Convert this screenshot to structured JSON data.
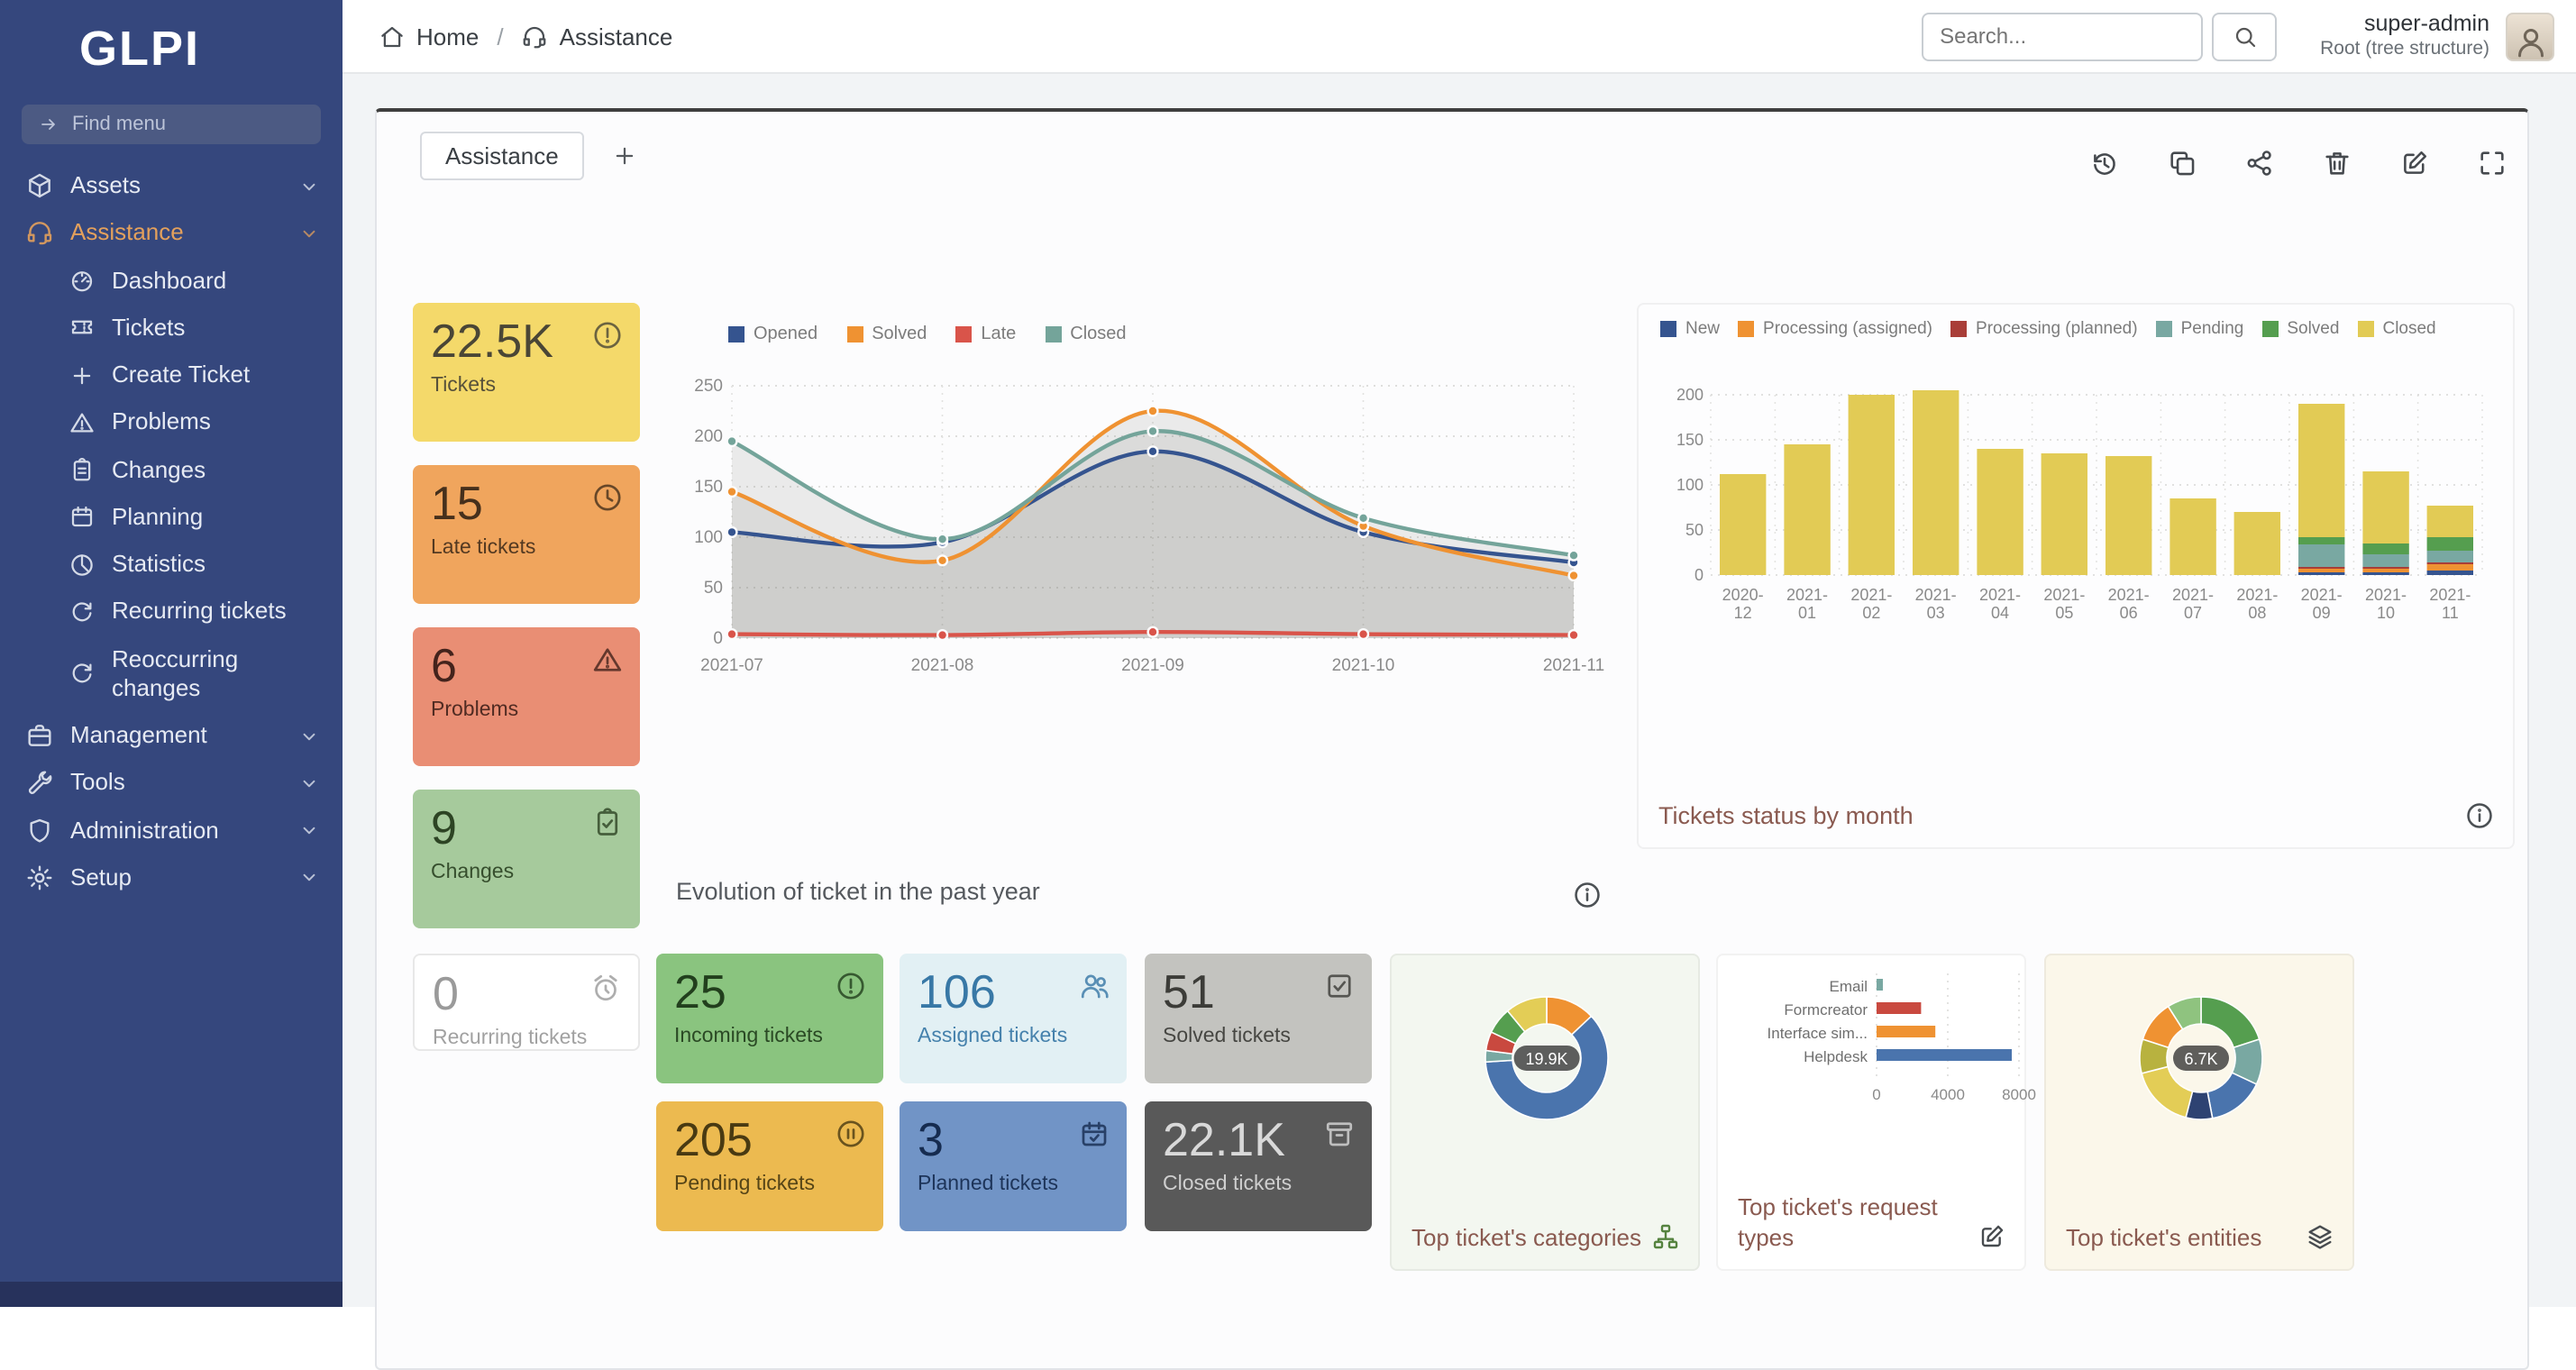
{
  "sidebar": {
    "logo_text": "GLPI",
    "find_menu_placeholder": "Find menu",
    "find_icon": "arrow-right-icon",
    "top_items": [
      {
        "label": "Assets",
        "icon": "package-icon"
      },
      {
        "label": "Assistance",
        "icon": "headset-icon",
        "active": true
      }
    ],
    "assistance_children": [
      {
        "label": "Dashboard",
        "icon": "gauge-icon"
      },
      {
        "label": "Tickets",
        "icon": "ticket-icon"
      },
      {
        "label": "Create Ticket",
        "icon": "plus-icon"
      },
      {
        "label": "Problems",
        "icon": "alert-triangle-icon"
      },
      {
        "label": "Changes",
        "icon": "clipboard-icon"
      },
      {
        "label": "Planning",
        "icon": "calendar-icon"
      },
      {
        "label": "Statistics",
        "icon": "chart-pie-icon"
      },
      {
        "label": "Recurring tickets",
        "icon": "refresh-icon"
      },
      {
        "label": "Reoccurring changes",
        "icon": "refresh-icon"
      }
    ],
    "bottom_items": [
      {
        "label": "Management",
        "icon": "briefcase-icon"
      },
      {
        "label": "Tools",
        "icon": "tools-icon"
      },
      {
        "label": "Administration",
        "icon": "shield-icon"
      },
      {
        "label": "Setup",
        "icon": "gear-icon"
      }
    ]
  },
  "topbar": {
    "breadcrumb": [
      {
        "label": "Home",
        "icon": "home-icon"
      },
      {
        "label": "Assistance",
        "icon": "headset-icon"
      }
    ],
    "breadcrumb_separator": "/",
    "search_placeholder": "Search...",
    "user": {
      "name": "super-admin",
      "scope": "Root (tree structure)"
    }
  },
  "icons": {
    "chevron": "chevron-down-icon",
    "info": "info-circle-icon",
    "search": "search-icon",
    "user": "user-icon",
    "plus": "plus-icon",
    "tree": "tree-icon",
    "edit": "edit-icon",
    "layers": "layers-icon"
  },
  "dashboard": {
    "tab_label": "Assistance",
    "toolbar": [
      {
        "name": "history",
        "icon": "history-icon"
      },
      {
        "name": "duplicate",
        "icon": "copy-icon"
      },
      {
        "name": "share",
        "icon": "share-icon"
      },
      {
        "name": "delete",
        "icon": "trash-icon"
      },
      {
        "name": "edit",
        "icon": "edit-icon"
      },
      {
        "name": "fullscreen",
        "icon": "maximize-icon"
      }
    ],
    "stat_cards": [
      {
        "value": "22.5K",
        "label": "Tickets",
        "icon": "alert-circle-icon",
        "bg": "#f4d96a",
        "fg": "#4a4636"
      },
      {
        "value": "15",
        "label": "Late tickets",
        "icon": "clock-icon",
        "bg": "#f0a55d",
        "fg": "#46301c"
      },
      {
        "value": "6",
        "label": "Problems",
        "icon": "alert-triangle-icon",
        "bg": "#e98e74",
        "fg": "#44231c"
      },
      {
        "value": "9",
        "label": "Changes",
        "icon": "clipboard-check-icon",
        "bg": "#a6ca9c",
        "fg": "#2d4424"
      },
      {
        "value": "0",
        "label": "Recurring tickets",
        "icon": "alarm-icon",
        "bg": "#ffffff",
        "fg": "#9a9a9a",
        "border": "#e8e8e8"
      },
      {
        "value": "25",
        "label": "Incoming tickets",
        "icon": "alert-circle-icon",
        "bg": "#8ac47f",
        "fg": "#223f1d"
      },
      {
        "value": "106",
        "label": "Assigned tickets",
        "icon": "users-icon",
        "bg": "#e2f0f4",
        "fg": "#3878a6"
      },
      {
        "value": "51",
        "label": "Solved tickets",
        "icon": "checkbox-icon",
        "bg": "#c3c3bf",
        "fg": "#3c3c38"
      },
      {
        "value": "205",
        "label": "Pending tickets",
        "icon": "pause-circle-icon",
        "bg": "#ecba50",
        "fg": "#493a12"
      },
      {
        "value": "3",
        "label": "Planned tickets",
        "icon": "calendar-check-icon",
        "bg": "#7194c6",
        "fg": "#162c50"
      },
      {
        "value": "22.1K",
        "label": "Closed tickets",
        "icon": "archive-icon",
        "bg": "#595959",
        "fg": "#d9d9d9"
      }
    ]
  },
  "chart_data": [
    {
      "key": "evolution",
      "type": "line",
      "title": "Evolution of ticket in the past year",
      "x": [
        "2021-07",
        "2021-08",
        "2021-09",
        "2021-10",
        "2021-11"
      ],
      "ylim": [
        0,
        250
      ],
      "yticks": [
        0,
        50,
        100,
        150,
        200,
        250
      ],
      "grid": true,
      "legend_position": "top",
      "area_fill": "rgba(128,128,118,0.14)",
      "series": [
        {
          "name": "Opened",
          "color": "#35548f",
          "area": true,
          "values": [
            105,
            95,
            185,
            105,
            75
          ]
        },
        {
          "name": "Solved",
          "color": "#ef9232",
          "area": true,
          "values": [
            145,
            77,
            225,
            111,
            62
          ]
        },
        {
          "name": "Late",
          "color": "#d9544a",
          "area": false,
          "values": [
            4,
            3,
            6,
            4,
            3
          ]
        },
        {
          "name": "Closed",
          "color": "#74a49a",
          "area": true,
          "values": [
            195,
            98,
            205,
            119,
            82
          ]
        }
      ]
    },
    {
      "key": "status_by_month",
      "type": "bar",
      "stacked": true,
      "title": "Tickets status by month",
      "card_bg": "#fdfdfe",
      "categories": [
        "2020-12",
        "2021-01",
        "2021-02",
        "2021-03",
        "2021-04",
        "2021-05",
        "2021-06",
        "2021-07",
        "2021-08",
        "2021-09",
        "2021-10",
        "2021-11"
      ],
      "ylim": [
        0,
        200
      ],
      "yticks": [
        0,
        50,
        100,
        150,
        200
      ],
      "grid": true,
      "legend_position": "top",
      "series": [
        {
          "name": "New",
          "color": "#35548f",
          "values": [
            0,
            0,
            0,
            0,
            0,
            0,
            0,
            0,
            0,
            3,
            3,
            5
          ]
        },
        {
          "name": "Processing (assigned)",
          "color": "#ef9232",
          "values": [
            0,
            0,
            0,
            0,
            0,
            0,
            0,
            0,
            0,
            4,
            4,
            7
          ]
        },
        {
          "name": "Processing (planned)",
          "color": "#a93e38",
          "values": [
            0,
            0,
            0,
            0,
            0,
            0,
            0,
            0,
            0,
            2,
            2,
            2
          ]
        },
        {
          "name": "Pending",
          "color": "#79a8a2",
          "values": [
            0,
            0,
            0,
            0,
            0,
            0,
            0,
            0,
            0,
            25,
            14,
            13
          ]
        },
        {
          "name": "Solved",
          "color": "#559e4f",
          "values": [
            0,
            0,
            0,
            0,
            0,
            0,
            0,
            0,
            0,
            8,
            12,
            15
          ]
        },
        {
          "name": "Closed",
          "color": "#e2cb55",
          "values": [
            112,
            145,
            200,
            205,
            140,
            135,
            132,
            85,
            70,
            148,
            80,
            35
          ]
        }
      ]
    },
    {
      "key": "top_categories",
      "type": "pie",
      "donut": true,
      "title": "Top ticket's categories",
      "center_label": "19.9K",
      "card_bg": "#f3f7f0",
      "slices": [
        {
          "color": "#ef9232",
          "value": 13
        },
        {
          "color": "#4a74ad",
          "value": 61
        },
        {
          "color": "#79a8a2",
          "value": 3
        },
        {
          "color": "#c9493f",
          "value": 5
        },
        {
          "color": "#559e4f",
          "value": 7
        },
        {
          "color": "#e3cd56",
          "value": 11
        }
      ]
    },
    {
      "key": "request_types",
      "type": "bar",
      "orientation": "horizontal",
      "title": "Top ticket's request types",
      "card_bg": "#ffffff",
      "xlim": [
        0,
        8000
      ],
      "xticks": [
        0,
        4000,
        8000
      ],
      "rows": [
        {
          "label": "Email",
          "color": "#79a8a2",
          "value": 350
        },
        {
          "label": "Formcreator",
          "color": "#c9493f",
          "value": 2500
        },
        {
          "label": "Interface sim...",
          "color": "#ef9232",
          "value": 3300
        },
        {
          "label": "Helpdesk",
          "color": "#4a74ad",
          "value": 7600
        }
      ]
    },
    {
      "key": "top_entities",
      "type": "pie",
      "donut": true,
      "title": "Top ticket's entities",
      "center_label": "6.7K",
      "card_bg": "#fbf7ea",
      "slices": [
        {
          "color": "#559e4f",
          "value": 20
        },
        {
          "color": "#79a8a2",
          "value": 12
        },
        {
          "color": "#4a74ad",
          "value": 15
        },
        {
          "color": "#2e4372",
          "value": 7
        },
        {
          "color": "#e3cd56",
          "value": 17
        },
        {
          "color": "#b8b23f",
          "value": 9
        },
        {
          "color": "#ef9232",
          "value": 11
        },
        {
          "color": "#8fc37f",
          "value": 9
        }
      ]
    }
  ]
}
